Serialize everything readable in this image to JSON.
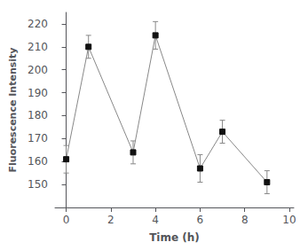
{
  "chart_data": {
    "type": "line",
    "xlabel": "Time (h)",
    "ylabel": "Fluorescence Intensity",
    "x": [
      0,
      1,
      3,
      4,
      6,
      7,
      9
    ],
    "series": [
      {
        "color": "#888888",
        "colors": [
          "#111111",
          "#111111",
          "#111111",
          "#111111",
          "#111111",
          "#111111",
          "#111111"
        ],
        "marker": "square",
        "values": [
          161,
          210,
          164,
          215,
          157,
          173,
          151
        ],
        "yerr": [
          6,
          5,
          5,
          6,
          6,
          5,
          5
        ]
      }
    ],
    "xlim": [
      -0.5,
      10.2
    ],
    "ylim": [
      140,
      225
    ],
    "xticks": [
      0,
      2,
      4,
      6,
      8,
      10
    ],
    "yticks": [
      150,
      160,
      170,
      180,
      190,
      200,
      210,
      220
    ],
    "grid": false
  }
}
